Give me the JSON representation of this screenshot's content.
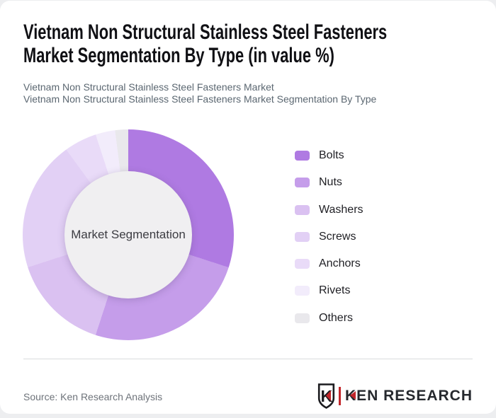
{
  "page": {
    "page_bg": "#edeef0",
    "card_bg": "#ffffff"
  },
  "header": {
    "title_lines": [
      "Vietnam Non Structural Stainless Steel Fasteners",
      "Market Segmentation By Type (in value %)"
    ],
    "subtitle_lines": [
      "Vietnam Non Structural Stainless Steel Fasteners Market",
      "Vietnam Non Structural Stainless Steel Fasteners Market Segmentation By Type"
    ]
  },
  "chart_data": {
    "type": "pie",
    "variant": "donut",
    "title": "Vietnam Non Structural Stainless Steel Fasteners Market Segmentation By Type (in value %)",
    "unit": "value %",
    "center_label": "Market Segmentation",
    "start_angle_deg": 0,
    "direction": "clockwise",
    "legend_position": "right",
    "inner_circle_color": "#f0eff1",
    "segments": [
      {
        "label": "Bolts",
        "value": 30,
        "color": "#af7ae2"
      },
      {
        "label": "Nuts",
        "value": 25,
        "color": "#c59dea"
      },
      {
        "label": "Washers",
        "value": 15,
        "color": "#dac1f1"
      },
      {
        "label": "Screws",
        "value": 20,
        "color": "#e2d0f5"
      },
      {
        "label": "Anchors",
        "value": 5,
        "color": "#e9dbf8"
      },
      {
        "label": "Rivets",
        "value": 3,
        "color": "#f2ecfb"
      },
      {
        "label": "Others",
        "value": 2,
        "color": "#e9e8ec"
      }
    ]
  },
  "footer": {
    "source": "Source: Ken Research Analysis",
    "logo_text": "KEN RESEARCH",
    "logo_letter": "K",
    "logo_red": "#c2262b",
    "logo_dark": "#26292e"
  }
}
